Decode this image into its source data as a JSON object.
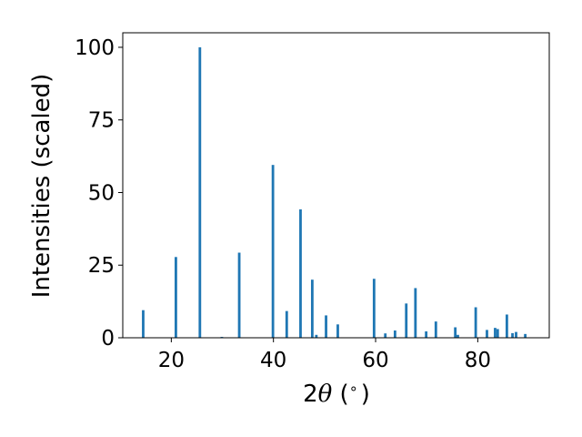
{
  "chart_data": {
    "type": "bar",
    "title": "",
    "xlabel_prefix": "2",
    "xlabel_symbol": "θ",
    "xlabel_suffix": " (",
    "xlabel_unit": "∘",
    "xlabel_close": ")",
    "ylabel": "Intensities (scaled)",
    "xlim": [
      10.5,
      94
    ],
    "ylim": [
      0,
      105
    ],
    "xticks": [
      20,
      40,
      60,
      80
    ],
    "yticks": [
      0,
      25,
      50,
      75,
      100
    ],
    "grid": false,
    "legend": "none",
    "bar_color": "#1f77b4",
    "bar_width_deg": 0.5,
    "series": [
      {
        "x": [
          14.5,
          20.9,
          25.6,
          29.9,
          33.3,
          39.9,
          42.6,
          45.3,
          47.6,
          48.4,
          50.3,
          52.6,
          59.7,
          61.9,
          63.8,
          66.0,
          67.8,
          69.9,
          71.8,
          75.6,
          76.1,
          79.6,
          81.8,
          83.4,
          83.9,
          85.7,
          86.8,
          87.5,
          89.3
        ],
        "values": [
          9.5,
          27.8,
          100,
          0.3,
          29.3,
          59.5,
          9.2,
          44.2,
          20,
          1,
          7.7,
          4.6,
          20.3,
          1.5,
          2.5,
          11.8,
          17.1,
          2.2,
          5.6,
          3.6,
          1,
          10.5,
          2.7,
          3.4,
          3,
          8,
          1.6,
          2,
          1.3
        ]
      }
    ]
  }
}
